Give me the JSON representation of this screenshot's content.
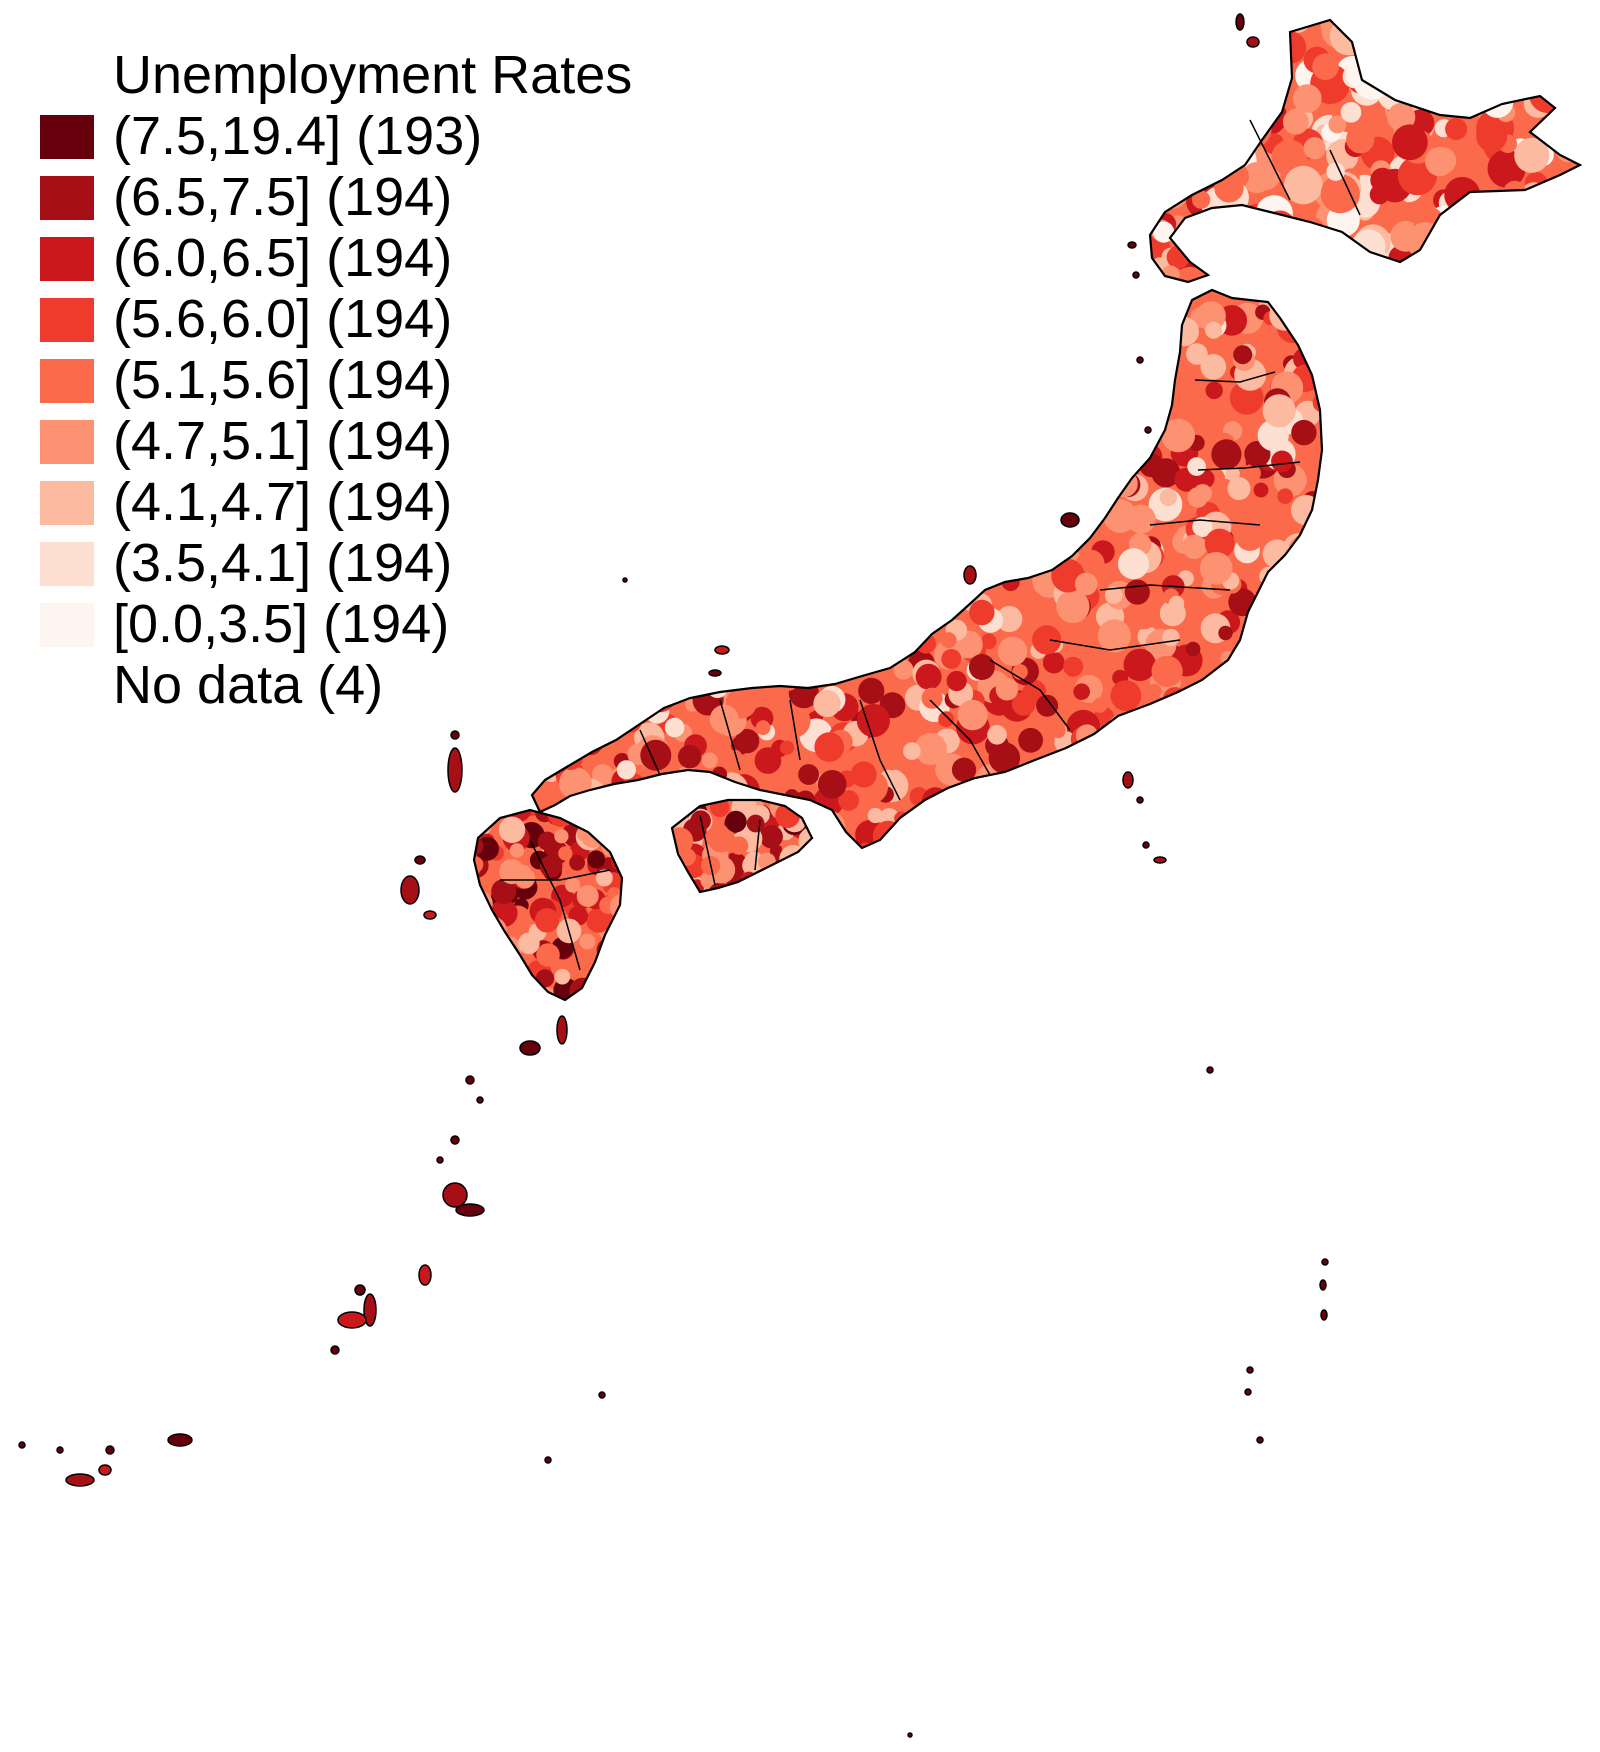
{
  "legend": {
    "title": "Unemployment Rates",
    "classes": [
      {
        "label": "(7.5,19.4] (193)",
        "color": "#67000d"
      },
      {
        "label": "(6.5,7.5] (194)",
        "color": "#a50f15"
      },
      {
        "label": "(6.0,6.5] (194)",
        "color": "#cb181d"
      },
      {
        "label": "(5.6,6.0] (194)",
        "color": "#ef3b2c"
      },
      {
        "label": "(5.1,5.6] (194)",
        "color": "#fb6a4a"
      },
      {
        "label": "(4.7,5.1] (194)",
        "color": "#fc9272"
      },
      {
        "label": "(4.1,4.7] (194)",
        "color": "#fcbba1"
      },
      {
        "label": "(3.5,4.1] (194)",
        "color": "#fee0d2"
      },
      {
        "label": "[0.0,3.5] (194)",
        "color": "#fff5f0"
      }
    ],
    "no_data_label": "No data (4)"
  },
  "map": {
    "country": "Japan",
    "border_color": "#000000"
  }
}
